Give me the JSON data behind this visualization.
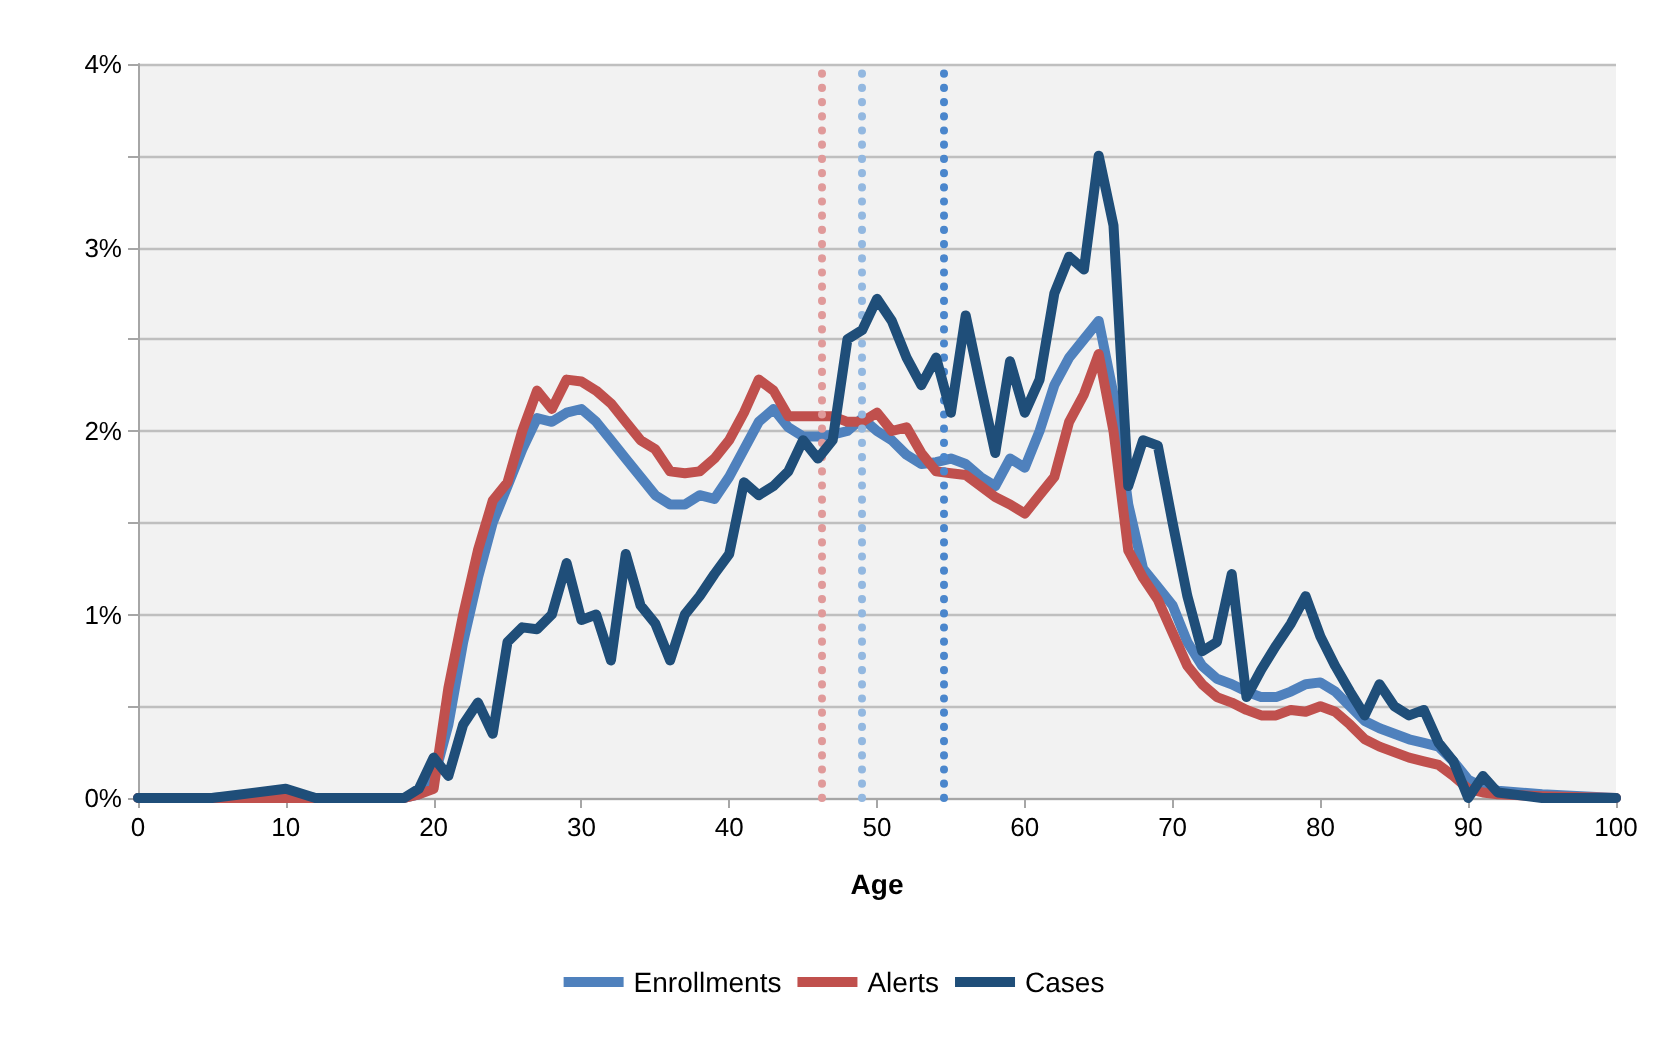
{
  "chart_data": {
    "type": "line",
    "xlabel": "Age",
    "x": [
      0,
      5,
      10,
      12,
      15,
      18,
      19,
      20,
      21,
      22,
      23,
      24,
      25,
      26,
      27,
      28,
      29,
      30,
      31,
      32,
      33,
      34,
      35,
      36,
      37,
      38,
      39,
      40,
      41,
      42,
      43,
      44,
      45,
      46,
      47,
      48,
      49,
      50,
      51,
      52,
      53,
      54,
      55,
      56,
      57,
      58,
      59,
      60,
      61,
      62,
      63,
      64,
      65,
      66,
      67,
      68,
      69,
      70,
      71,
      72,
      73,
      74,
      75,
      76,
      77,
      78,
      79,
      80,
      81,
      82,
      83,
      84,
      85,
      86,
      87,
      88,
      89,
      90,
      91,
      92,
      95,
      100
    ],
    "series": [
      {
        "name": "Enrollments",
        "color": "#4f81bd",
        "values": [
          0,
          0,
          0.02,
          0,
          0,
          0,
          0.02,
          0.1,
          0.4,
          0.85,
          1.2,
          1.5,
          1.7,
          1.9,
          2.07,
          2.05,
          2.1,
          2.12,
          2.05,
          1.95,
          1.85,
          1.75,
          1.65,
          1.6,
          1.6,
          1.65,
          1.63,
          1.75,
          1.9,
          2.05,
          2.12,
          2.02,
          1.97,
          1.97,
          1.98,
          2.0,
          2.07,
          2.0,
          1.95,
          1.87,
          1.82,
          1.83,
          1.85,
          1.82,
          1.75,
          1.7,
          1.85,
          1.8,
          2.0,
          2.25,
          2.4,
          2.5,
          2.6,
          2.2,
          1.6,
          1.25,
          1.15,
          1.05,
          0.85,
          0.72,
          0.65,
          0.62,
          0.58,
          0.55,
          0.55,
          0.58,
          0.62,
          0.63,
          0.58,
          0.5,
          0.42,
          0.38,
          0.35,
          0.32,
          0.3,
          0.28,
          0.2,
          0.1,
          0.06,
          0.04,
          0.02,
          0
        ]
      },
      {
        "name": "Alerts",
        "color": "#c0504d",
        "values": [
          0,
          0,
          0,
          0,
          0,
          0,
          0.02,
          0.05,
          0.6,
          1.0,
          1.35,
          1.62,
          1.72,
          2.0,
          2.22,
          2.12,
          2.28,
          2.27,
          2.22,
          2.15,
          2.05,
          1.95,
          1.9,
          1.78,
          1.77,
          1.78,
          1.85,
          1.95,
          2.1,
          2.28,
          2.22,
          2.08,
          2.08,
          2.08,
          2.08,
          2.05,
          2.05,
          2.1,
          2.0,
          2.02,
          1.88,
          1.78,
          1.77,
          1.76,
          1.7,
          1.64,
          1.6,
          1.55,
          1.65,
          1.75,
          2.05,
          2.2,
          2.42,
          2.0,
          1.35,
          1.2,
          1.08,
          0.9,
          0.72,
          0.62,
          0.55,
          0.52,
          0.48,
          0.45,
          0.45,
          0.48,
          0.47,
          0.5,
          0.47,
          0.4,
          0.32,
          0.28,
          0.25,
          0.22,
          0.2,
          0.18,
          0.12,
          0.05,
          0.03,
          0.02,
          0.01,
          0
        ]
      },
      {
        "name": "Cases",
        "color": "#1f4e79",
        "values": [
          0,
          0,
          0.05,
          0,
          0,
          0,
          0.05,
          0.22,
          0.12,
          0.4,
          0.52,
          0.35,
          0.85,
          0.93,
          0.92,
          1.0,
          1.28,
          0.97,
          1.0,
          0.75,
          1.33,
          1.05,
          0.95,
          0.75,
          1.0,
          1.1,
          1.22,
          1.33,
          1.72,
          1.65,
          1.7,
          1.78,
          1.95,
          1.85,
          1.95,
          2.5,
          2.55,
          2.72,
          2.6,
          2.4,
          2.25,
          2.4,
          2.1,
          2.63,
          2.25,
          1.88,
          2.38,
          2.1,
          2.28,
          2.75,
          2.95,
          2.88,
          3.5,
          3.12,
          1.7,
          1.95,
          1.92,
          1.5,
          1.1,
          0.8,
          0.85,
          1.22,
          0.55,
          0.7,
          0.83,
          0.95,
          1.1,
          0.88,
          0.72,
          0.58,
          0.45,
          0.62,
          0.5,
          0.45,
          0.48,
          0.3,
          0.2,
          0,
          0.12,
          0.03,
          0,
          0
        ]
      }
    ],
    "xlim": [
      0,
      100
    ],
    "xticks": [
      0,
      10,
      20,
      30,
      40,
      50,
      60,
      70,
      80,
      90,
      100
    ],
    "ylim": [
      0,
      4
    ],
    "yticks": [
      {
        "value": 0,
        "label": "0%"
      },
      {
        "value": 0.5,
        "label": null
      },
      {
        "value": 1,
        "label": "1%"
      },
      {
        "value": 1.5,
        "label": null
      },
      {
        "value": 2,
        "label": "2%"
      },
      {
        "value": 2.5,
        "label": null
      },
      {
        "value": 3,
        "label": "3%"
      },
      {
        "value": 3.5,
        "label": null
      },
      {
        "value": 4,
        "label": "4%"
      }
    ],
    "ref_lines": [
      {
        "axis": "x",
        "value": 46.3,
        "color": "#e09a9a",
        "line_style": "dotted"
      },
      {
        "axis": "x",
        "value": 48.9,
        "color": "#93b8e0",
        "line_style": "dotted"
      },
      {
        "axis": "x",
        "value": 54.5,
        "color": "#4a86cc",
        "line_style": "dotted"
      }
    ],
    "grid": "y",
    "legend": "bottom",
    "marker": "none",
    "line_style": "solid"
  }
}
